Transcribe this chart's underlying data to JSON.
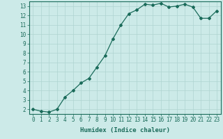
{
  "title": "",
  "xlabel": "Humidex (Indice chaleur)",
  "ylabel": "",
  "x": [
    0,
    1,
    2,
    3,
    4,
    5,
    6,
    7,
    8,
    9,
    10,
    11,
    12,
    13,
    14,
    15,
    16,
    17,
    18,
    19,
    20,
    21,
    22,
    23
  ],
  "y": [
    2.0,
    1.8,
    1.7,
    2.0,
    3.3,
    4.0,
    4.8,
    5.3,
    6.5,
    7.7,
    9.5,
    11.0,
    12.2,
    12.6,
    13.2,
    13.1,
    13.3,
    12.9,
    13.0,
    13.2,
    12.9,
    11.7,
    11.7,
    12.5
  ],
  "xlim": [
    -0.5,
    23.5
  ],
  "ylim": [
    1.5,
    13.5
  ],
  "yticks": [
    2,
    3,
    4,
    5,
    6,
    7,
    8,
    9,
    10,
    11,
    12,
    13
  ],
  "xticks": [
    0,
    1,
    2,
    3,
    4,
    5,
    6,
    7,
    8,
    9,
    10,
    11,
    12,
    13,
    14,
    15,
    16,
    17,
    18,
    19,
    20,
    21,
    22,
    23
  ],
  "line_color": "#1a6b5a",
  "marker": "D",
  "marker_size": 2.0,
  "bg_color": "#cceae8",
  "grid_color": "#aed4d1",
  "axis_color": "#1a6b5a",
  "tick_color": "#1a6b5a",
  "label_color": "#1a6b5a",
  "xlabel_fontsize": 6.5,
  "tick_fontsize": 5.5,
  "linewidth": 0.9
}
